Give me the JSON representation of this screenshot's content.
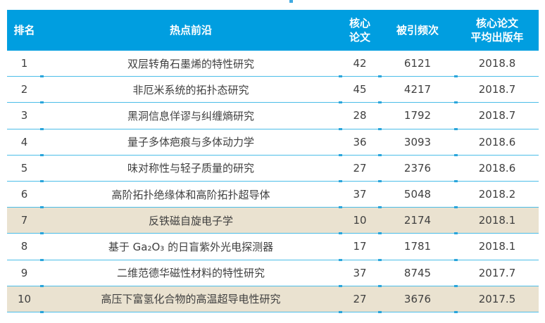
{
  "page": {
    "background": "#ffffff",
    "top_artifact_color": "#3FA9E1"
  },
  "table": {
    "header_bg": "#009EE0",
    "header_text_color": "#ffffff",
    "row_highlight_bg": "#EAE2D0",
    "separator_color": "#4BBDE8",
    "tick_color": "#2AA5DB",
    "text_color": "#404040",
    "headers": [
      "排名",
      "热点前沿",
      "核心\n论文",
      "被引频次",
      "核心论文\n平均出版年"
    ],
    "rows": [
      {
        "rank": 1,
        "topic": "双层转角石墨烯的特性研究",
        "core_papers": 42,
        "citations": 6121,
        "avg_year": "2018.8",
        "highlight": false
      },
      {
        "rank": 2,
        "topic": "非厄米系统的拓扑态研究",
        "core_papers": 45,
        "citations": 4217,
        "avg_year": "2018.7",
        "highlight": false
      },
      {
        "rank": 3,
        "topic": "黑洞信息佯谬与纠缠熵研究",
        "core_papers": 28,
        "citations": 1792,
        "avg_year": "2018.7",
        "highlight": false
      },
      {
        "rank": 4,
        "topic": "量子多体疤痕与多体动力学",
        "core_papers": 36,
        "citations": 3093,
        "avg_year": "2018.6",
        "highlight": false
      },
      {
        "rank": 5,
        "topic": "味对称性与轻子质量的研究",
        "core_papers": 27,
        "citations": 2376,
        "avg_year": "2018.6",
        "highlight": false
      },
      {
        "rank": 6,
        "topic": "高阶拓扑绝缘体和高阶拓扑超导体",
        "core_papers": 37,
        "citations": 5048,
        "avg_year": "2018.2",
        "highlight": false
      },
      {
        "rank": 7,
        "topic": "反铁磁自旋电子学",
        "core_papers": 10,
        "citations": 2174,
        "avg_year": "2018.1",
        "highlight": true
      },
      {
        "rank": 8,
        "topic": "基于 Ga₂O₃ 的日盲紫外光电探测器",
        "core_papers": 17,
        "citations": 1781,
        "avg_year": "2018.1",
        "highlight": false
      },
      {
        "rank": 9,
        "topic": "二维范德华磁性材料的特性研究",
        "core_papers": 37,
        "citations": 8745,
        "avg_year": "2017.7",
        "highlight": false
      },
      {
        "rank": 10,
        "topic": "高压下富氢化合物的高温超导电性研究",
        "core_papers": 27,
        "citations": 3676,
        "avg_year": "2017.5",
        "highlight": true
      }
    ]
  }
}
